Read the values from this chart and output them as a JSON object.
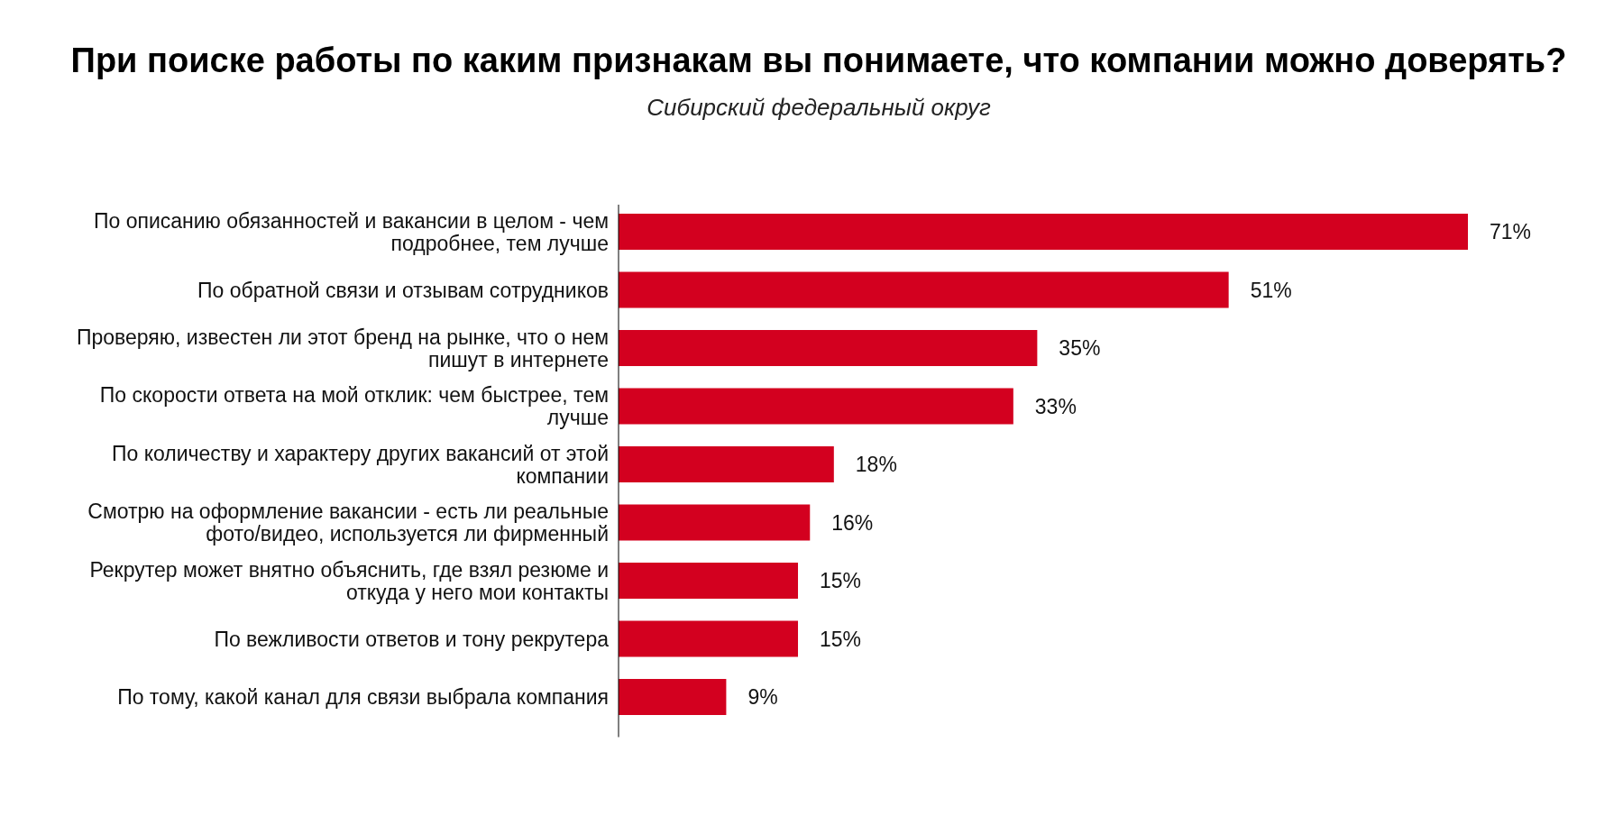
{
  "chart_data": {
    "type": "bar",
    "orientation": "horizontal",
    "title": "При поиске работы по каким признакам вы понимаете, что компании можно доверять?",
    "subtitle": "Сибирский федеральный округ",
    "categories": [
      "По описанию обязанностей и вакансии в целом - чем подробнее, тем лучше",
      "По обратной связи и отзывам сотрудников",
      "Проверяю, известен ли этот бренд на рынке, что о нем пишут в интернете",
      "По скорости ответа на мой отклик: чем быстрее, тем лучше",
      "По количеству и характеру других вакансий от этой компании",
      "Смотрю на оформление вакансии - есть ли реальные фото/видео, используется ли фирменный",
      "Рекрутер может внятно объяснить, где взял резюме и откуда у него мои контакты",
      "По вежливости ответов и тону рекрутера",
      "По тому, какой канал для связи выбрала компания"
    ],
    "values": [
      71,
      51,
      35,
      33,
      18,
      16,
      15,
      15,
      9
    ],
    "value_labels": [
      "71%",
      "51%",
      "35%",
      "33%",
      "18%",
      "16%",
      "15%",
      "15%",
      "9%"
    ],
    "color": "#d3001f"
  }
}
